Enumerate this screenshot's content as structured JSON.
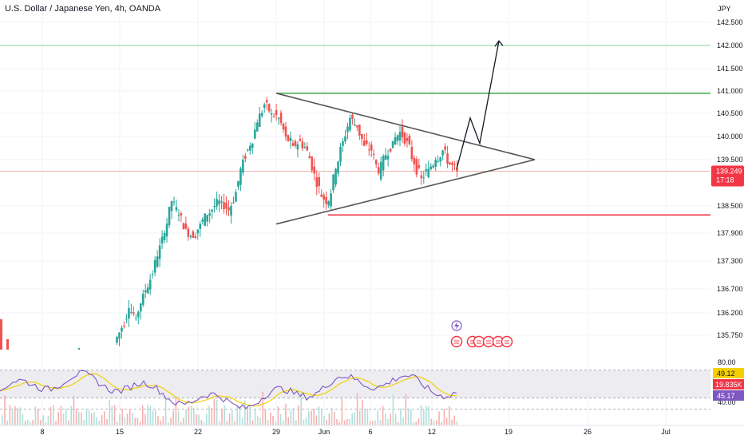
{
  "header": {
    "symbol_title": "U.S. Dollar / Japanese Yen, 4h, OANDA",
    "currency": "JPY"
  },
  "price_axis": {
    "ticks": [
      "142.500",
      "142.000",
      "141.500",
      "141.000",
      "140.500",
      "140.000",
      "139.500",
      "138.500",
      "137.900",
      "137.300",
      "136.700",
      "136.200",
      "135.750"
    ],
    "current_price": "139.249",
    "countdown": "17:18"
  },
  "time_axis": {
    "ticks": [
      "8",
      "15",
      "22",
      "29",
      "Jun",
      "6",
      "12",
      "19",
      "26",
      "Jul"
    ]
  },
  "indicator_axis": {
    "levels": [
      "80.00",
      "40.00"
    ],
    "badge_yellow": "49.12",
    "badge_red": "19.835K",
    "badge_purple": "45.17"
  },
  "colors": {
    "up": "#26a69a",
    "down": "#ef5350",
    "rsi": "#7e57c2",
    "ma": "#f5d000",
    "resistance": "#4caf50",
    "support": "#f23645",
    "trend": "#555555",
    "arrow": "#131722"
  },
  "chart_data": {
    "type": "candlestick",
    "symbol_title": "U.S. Dollar / Japanese Yen, 4h, OANDA",
    "currency": "JPY",
    "date_ticks": [
      "8",
      "15",
      "22",
      "29",
      "Jun",
      "6",
      "12",
      "19",
      "26",
      "Jul"
    ],
    "price_ticks": [
      142.5,
      142.0,
      141.5,
      141.0,
      140.5,
      140.0,
      139.5,
      138.5,
      137.9,
      137.3,
      136.7,
      136.2,
      135.75
    ],
    "last_price": 139.249,
    "horizontal_levels": [
      142.0,
      140.95,
      138.3
    ],
    "triangle": {
      "upper_line": [
        [
          "29",
          140.95
        ],
        [
          "22 Jun",
          139.5
        ]
      ],
      "lower_line": [
        [
          "29",
          138.1
        ],
        [
          "22 Jun",
          139.5
        ]
      ]
    },
    "projected_path": [
      139.3,
      140.4,
      139.85,
      142.1
    ],
    "ohlc_close_path": [
      135.6,
      135.9,
      136.3,
      136.1,
      136.6,
      136.9,
      137.4,
      137.9,
      138.6,
      138.3,
      138.0,
      137.8,
      138.1,
      138.3,
      138.5,
      138.6,
      138.4,
      138.8,
      139.5,
      139.8,
      140.3,
      140.7,
      140.5,
      140.4,
      140.0,
      139.8,
      139.9,
      139.7,
      139.2,
      138.7,
      138.6,
      139.3,
      139.9,
      140.4,
      140.2,
      139.8,
      139.7,
      139.2,
      139.6,
      139.9,
      140.1,
      139.9,
      139.4,
      139.1,
      139.3,
      139.5,
      139.7,
      139.4,
      139.25
    ],
    "indicator": {
      "type": "RSI",
      "levels": [
        80,
        40
      ],
      "value": 45.17,
      "ma_value": 49.12,
      "volume": "19.835K"
    }
  }
}
